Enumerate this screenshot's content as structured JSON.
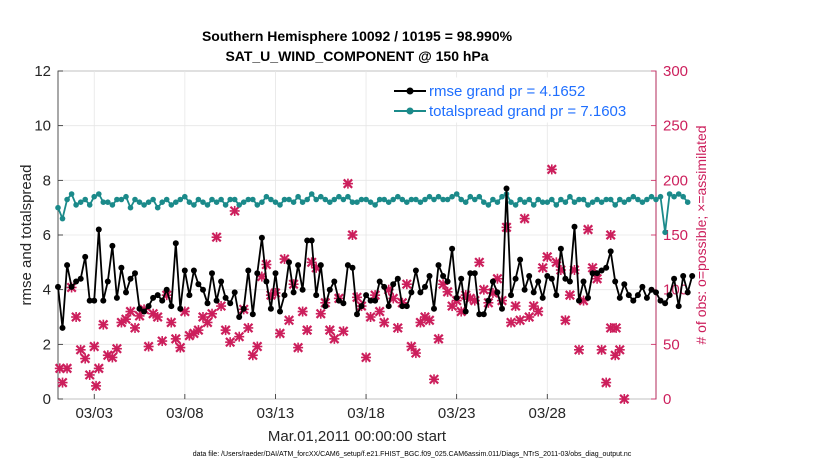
{
  "colors": {
    "rmse": "#000000",
    "totalspread": "#1b8a8a",
    "obs": "#cc1f5c",
    "legend_text": "#1f6fff"
  },
  "footnote": "data file: /Users/raeder/DAI/ATM_forcXX/CAM6_setup/f.e21.FHIST_BGC.f09_025.CAM6assim.011/Diags_NTrS_2011-03/obs_diag_output.nc",
  "chart_data": {
    "type": "line",
    "title": "Southern Hemisphere 10092 / 10195 = 98.990%",
    "subtitle": "SAT_U_WIND_COMPONENT @ 150 hPa",
    "xlabel": "Mar.01,2011 00:00:00 start",
    "ylabel": "rmse and totalspread",
    "y2label": "# of obs: o=possible; ×=assimilated",
    "xlim": [
      1.0,
      34.0
    ],
    "ylim": [
      0,
      12
    ],
    "y2lim": [
      0,
      300
    ],
    "yticks": [
      0,
      2,
      4,
      6,
      8,
      10,
      12
    ],
    "y2ticks": [
      0,
      50,
      100,
      150,
      200,
      250,
      300
    ],
    "xticks": [
      {
        "x": 3.0,
        "label": "03/03"
      },
      {
        "x": 8.0,
        "label": "03/08"
      },
      {
        "x": 13.0,
        "label": "03/13"
      },
      {
        "x": 18.0,
        "label": "03/18"
      },
      {
        "x": 23.0,
        "label": "03/23"
      },
      {
        "x": 28.0,
        "label": "03/28"
      }
    ],
    "grid": true,
    "legend": "top-right",
    "x_start": 1.0,
    "x_step": 0.25,
    "series": [
      {
        "name": "rmse grand pr = 4.1652",
        "values": [
          4.1,
          2.6,
          4.9,
          4.1,
          4.3,
          4.4,
          5.2,
          3.6,
          3.6,
          6.2,
          3.6,
          4.3,
          5.6,
          3.7,
          4.8,
          3.9,
          4.4,
          4.6,
          3.3,
          3.2,
          3.4,
          3.7,
          3.8,
          3.6,
          4,
          3.4,
          5.7,
          3.3,
          4.7,
          3.8,
          4.7,
          4.2,
          4,
          3.5,
          4.6,
          3.6,
          4.3,
          3.7,
          3.5,
          3.9,
          3,
          3.3,
          4.7,
          3.1,
          4.6,
          5.9,
          4.3,
          3.3,
          4.6,
          3.2,
          3.8,
          5,
          3.9,
          4.9,
          4,
          5.8,
          5.8,
          3.8,
          4.9,
          3.4,
          4,
          4.3,
          3.6,
          3.5,
          4.9,
          4.8,
          3.1,
          3.4,
          3.8,
          3.6,
          3.6,
          4.3,
          4.1,
          3.4,
          4.2,
          4.4,
          3.4,
          3.4,
          3.9,
          4.7,
          3.9,
          4.1,
          4.5,
          3.3,
          4.9,
          4.5,
          4.3,
          5.5,
          3.7,
          4.4,
          3.2,
          4.6,
          4.6,
          3.1,
          3.1,
          3.6,
          4.3,
          3.9,
          3.3,
          7.7,
          3.8,
          4.4,
          5.1,
          4,
          4.5,
          3.9,
          4.3,
          3.7,
          4.5,
          4.4,
          3.8,
          5.5,
          4.4,
          4.3,
          6.3,
          3.6,
          4.3,
          3.7,
          4.6,
          4.6,
          4.7,
          4.8,
          5.4,
          4.3,
          3.7,
          4.2,
          3.8,
          3.6,
          3.8,
          4.1,
          3.7,
          4,
          3.9,
          3.6,
          3.5,
          3.8,
          4.4,
          3.4,
          4.5,
          3.9,
          4.5
        ]
      },
      {
        "name": "totalspread grand pr = 7.1603",
        "values": [
          7.0,
          6.6,
          7.3,
          7.5,
          7.1,
          7.2,
          7.3,
          7.1,
          7.4,
          7.5,
          7.2,
          7.2,
          7.1,
          7.3,
          7.3,
          7.4,
          7.0,
          7.3,
          7.2,
          7.1,
          7.2,
          7.3,
          7.0,
          7.2,
          7.3,
          7.1,
          7.2,
          7.3,
          7.4,
          7.2,
          7.1,
          7.3,
          7.2,
          7.1,
          7.3,
          7.2,
          7.3,
          7.1,
          7.3,
          7.3,
          7.1,
          7.2,
          7.3,
          7.3,
          7.1,
          7.2,
          7.4,
          7.3,
          7.2,
          7.1,
          7.3,
          7.3,
          7.2,
          7.4,
          7.2,
          7.3,
          7.5,
          7.3,
          7.4,
          7.3,
          7.2,
          7.3,
          7.4,
          7.3,
          7.4,
          7.2,
          7.2,
          7.3,
          7.3,
          7.2,
          7.1,
          7.3,
          7.3,
          7.2,
          7.3,
          7.4,
          7.3,
          7.2,
          7.3,
          7.3,
          7.2,
          7.3,
          7.4,
          7.3,
          7.4,
          7.3,
          7.3,
          7.4,
          7.5,
          7.3,
          7.2,
          7.4,
          7.3,
          7.4,
          7.2,
          7.1,
          7.3,
          7.2,
          7.4,
          7.5,
          7.2,
          7.1,
          7.3,
          7.2,
          7.3,
          7.1,
          7.3,
          7.2,
          7.2,
          7.3,
          7.1,
          7.3,
          7.2,
          7.4,
          7.2,
          7.3,
          7.3,
          7.1,
          7.2,
          7.3,
          7.2,
          7.3,
          7.3,
          7.1,
          7.3,
          7.2,
          7.3,
          7.4,
          7.3,
          7.2,
          7.3,
          7.4,
          7.3,
          7.4,
          6.1,
          7.5,
          7.4,
          7.5,
          7.4,
          7.2
        ]
      }
    ],
    "obs_series": {
      "name": "# of obs",
      "axis": "right",
      "points": [
        [
          1.1,
          28
        ],
        [
          1.25,
          15
        ],
        [
          1.5,
          28
        ],
        [
          1.75,
          102
        ],
        [
          2,
          75
        ],
        [
          2.25,
          45
        ],
        [
          2.5,
          37
        ],
        [
          2.75,
          22
        ],
        [
          3,
          48
        ],
        [
          3.1,
          12
        ],
        [
          3.25,
          28
        ],
        [
          3.5,
          68
        ],
        [
          3.75,
          40
        ],
        [
          4,
          38
        ],
        [
          4.25,
          46
        ],
        [
          4.5,
          70
        ],
        [
          4.75,
          73
        ],
        [
          5,
          80
        ],
        [
          5.25,
          65
        ],
        [
          5.5,
          76
        ],
        [
          5.75,
          82
        ],
        [
          6,
          48
        ],
        [
          6.25,
          78
        ],
        [
          6.5,
          75
        ],
        [
          6.75,
          53
        ],
        [
          7,
          95
        ],
        [
          7.25,
          70
        ],
        [
          7.5,
          55
        ],
        [
          7.75,
          47
        ],
        [
          8,
          80
        ],
        [
          8.25,
          58
        ],
        [
          8.5,
          60
        ],
        [
          8.75,
          63
        ],
        [
          9,
          75
        ],
        [
          9.25,
          70
        ],
        [
          9.5,
          78
        ],
        [
          9.75,
          148
        ],
        [
          10,
          85
        ],
        [
          10.25,
          63
        ],
        [
          10.5,
          52
        ],
        [
          10.75,
          172
        ],
        [
          11,
          57
        ],
        [
          11.25,
          82
        ],
        [
          11.5,
          65
        ],
        [
          11.75,
          40
        ],
        [
          12,
          48
        ],
        [
          12.25,
          112
        ],
        [
          12.5,
          123
        ],
        [
          12.75,
          95
        ],
        [
          13,
          97
        ],
        [
          13.25,
          60
        ],
        [
          13.5,
          128
        ],
        [
          13.75,
          72
        ],
        [
          14,
          105
        ],
        [
          14.25,
          47
        ],
        [
          14.5,
          80
        ],
        [
          14.75,
          63
        ],
        [
          15,
          125
        ],
        [
          15.25,
          120
        ],
        [
          15.5,
          78
        ],
        [
          15.75,
          88
        ],
        [
          16,
          63
        ],
        [
          16.25,
          55
        ],
        [
          16.5,
          92
        ],
        [
          16.75,
          62
        ],
        [
          17,
          197
        ],
        [
          17.25,
          150
        ],
        [
          17.5,
          93
        ],
        [
          17.75,
          85
        ],
        [
          18,
          38
        ],
        [
          18.25,
          75
        ],
        [
          18.5,
          95
        ],
        [
          18.75,
          80
        ],
        [
          19,
          70
        ],
        [
          19.25,
          100
        ],
        [
          19.5,
          92
        ],
        [
          19.75,
          65
        ],
        [
          20,
          88
        ],
        [
          20.25,
          105
        ],
        [
          20.5,
          48
        ],
        [
          20.75,
          42
        ],
        [
          21,
          70
        ],
        [
          21.25,
          75
        ],
        [
          21.5,
          72
        ],
        [
          21.75,
          18
        ],
        [
          22,
          55
        ],
        [
          22.25,
          105
        ],
        [
          22.5,
          98
        ],
        [
          22.75,
          85
        ],
        [
          23,
          90
        ],
        [
          23.25,
          80
        ],
        [
          23.5,
          95
        ],
        [
          23.75,
          92
        ],
        [
          24,
          90
        ],
        [
          24.25,
          125
        ],
        [
          24.5,
          100
        ],
        [
          24.75,
          88
        ],
        [
          25,
          97
        ],
        [
          25.25,
          110
        ],
        [
          25.5,
          90
        ],
        [
          25.75,
          157
        ],
        [
          26,
          70
        ],
        [
          26.25,
          85
        ],
        [
          26.5,
          72
        ],
        [
          26.75,
          165
        ],
        [
          27,
          75
        ],
        [
          27.25,
          85
        ],
        [
          27.5,
          80
        ],
        [
          27.75,
          120
        ],
        [
          28,
          130
        ],
        [
          28.25,
          210
        ],
        [
          28.5,
          125
        ],
        [
          28.75,
          118
        ],
        [
          29,
          72
        ],
        [
          29.25,
          95
        ],
        [
          29.5,
          118
        ],
        [
          29.75,
          45
        ],
        [
          30,
          90
        ],
        [
          30.25,
          155
        ],
        [
          30.5,
          120
        ],
        [
          30.75,
          110
        ],
        [
          31,
          45
        ],
        [
          31.25,
          15
        ],
        [
          31.5,
          65
        ],
        [
          31.75,
          40
        ],
        [
          32,
          45
        ],
        [
          32.25,
          0
        ],
        [
          31.5,
          150
        ],
        [
          31.8,
          65
        ]
      ]
    }
  }
}
